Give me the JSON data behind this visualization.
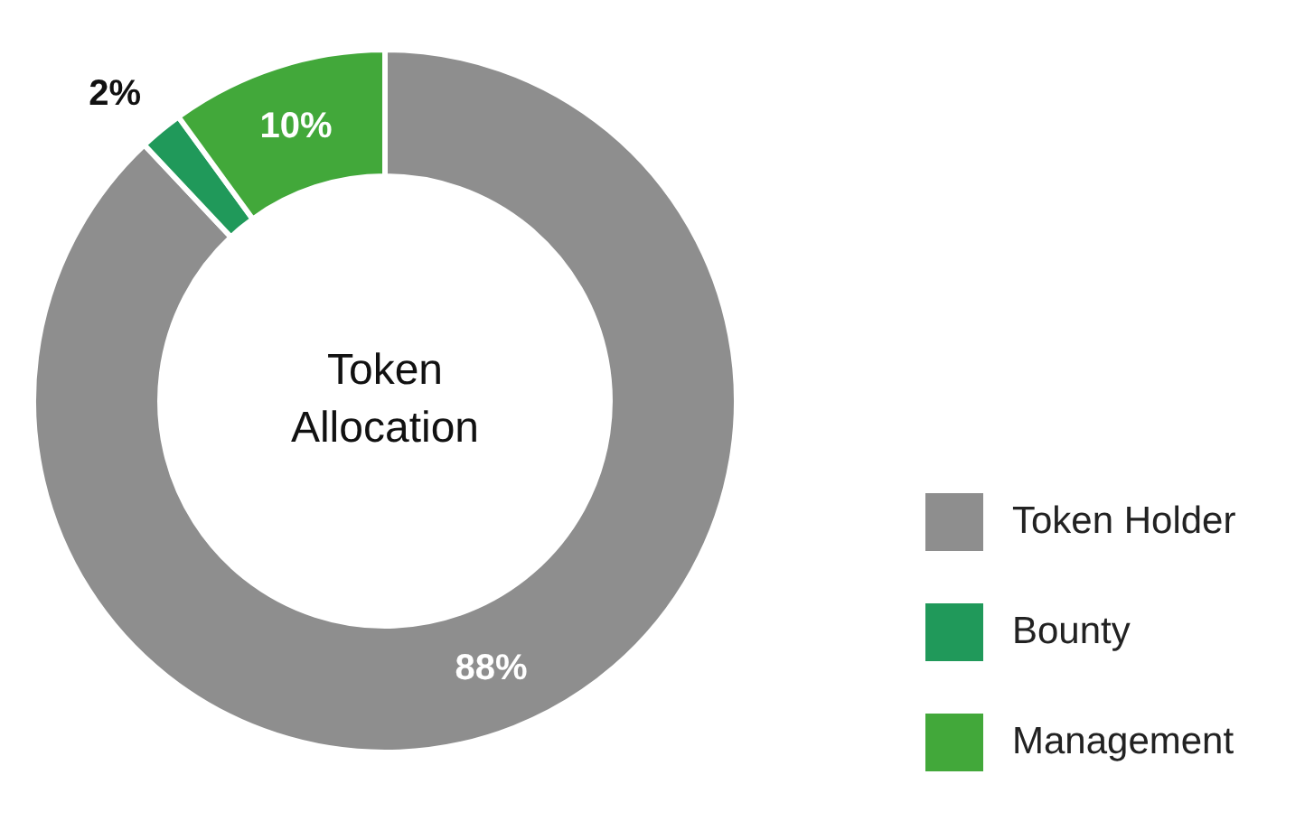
{
  "chart_data": {
    "type": "donut",
    "title": "Token Allocation",
    "categories": [
      "Token Holder",
      "Bounty",
      "Management"
    ],
    "values": [
      88,
      2,
      10
    ],
    "colors": [
      "#8e8e8e",
      "#20995a",
      "#42a83a"
    ],
    "value_labels": [
      "88%",
      "2%",
      "10%"
    ],
    "legend": "right"
  }
}
